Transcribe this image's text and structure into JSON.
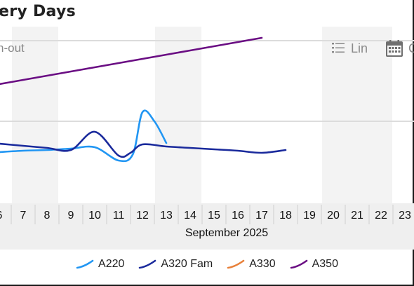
{
  "header": {
    "title": "ery Days",
    "subtitle": "n-out"
  },
  "toolbar": {
    "line_label": "Lin",
    "calendar_label": "C"
  },
  "axis": {
    "month_label": "September 2025",
    "days": [
      "6",
      "7",
      "8",
      "9",
      "10",
      "11",
      "12",
      "13",
      "14",
      "15",
      "16",
      "17",
      "18",
      "19",
      "20",
      "21",
      "22",
      "23"
    ],
    "shaded_days": [
      "7",
      "13",
      "20",
      "21"
    ]
  },
  "colors": {
    "A220": "#2196f3",
    "A320 Fam": "#1a2a9c",
    "A330": "#e8803a",
    "A350": "#6a0d83"
  },
  "icons": {
    "line": "list-icon",
    "calendar": "calendar-icon"
  },
  "chart_data": {
    "type": "line",
    "x_label": "September 2025",
    "categories": [
      "6",
      "7",
      "8",
      "9",
      "10",
      "11",
      "12",
      "13",
      "14",
      "15",
      "16",
      "17",
      "18",
      "19",
      "20",
      "21",
      "22",
      "23"
    ],
    "legend_position": "bottom",
    "series": [
      {
        "name": "A220",
        "points": [
          [
            6,
            101
          ],
          [
            7,
            103
          ],
          [
            8,
            104
          ],
          [
            9,
            106
          ],
          [
            10,
            108
          ],
          [
            11,
            89
          ],
          [
            11.6,
            98
          ],
          [
            12,
            158
          ],
          [
            12.5,
            145
          ],
          [
            13,
            114
          ]
        ]
      },
      {
        "name": "A320 Fam",
        "points": [
          [
            6,
            113
          ],
          [
            7,
            110
          ],
          [
            8,
            107
          ],
          [
            9,
            104
          ],
          [
            10,
            130
          ],
          [
            11,
            96
          ],
          [
            11.5,
            100
          ],
          [
            12,
            112
          ],
          [
            13,
            109
          ],
          [
            14,
            107
          ],
          [
            15,
            105
          ],
          [
            16,
            103
          ],
          [
            17,
            100
          ],
          [
            18,
            104
          ]
        ]
      },
      {
        "name": "A330",
        "points": []
      },
      {
        "name": "A350",
        "points": [
          [
            6,
            198
          ],
          [
            7,
            204
          ],
          [
            8,
            210
          ],
          [
            9,
            216
          ],
          [
            10,
            222
          ],
          [
            11,
            228
          ],
          [
            12,
            234
          ],
          [
            13,
            240
          ],
          [
            14,
            246
          ],
          [
            15,
            252
          ],
          [
            16,
            258
          ],
          [
            17,
            264
          ]
        ]
      }
    ]
  },
  "legend": [
    {
      "name": "A220"
    },
    {
      "name": "A320 Fam"
    },
    {
      "name": "A330"
    },
    {
      "name": "A350"
    }
  ]
}
